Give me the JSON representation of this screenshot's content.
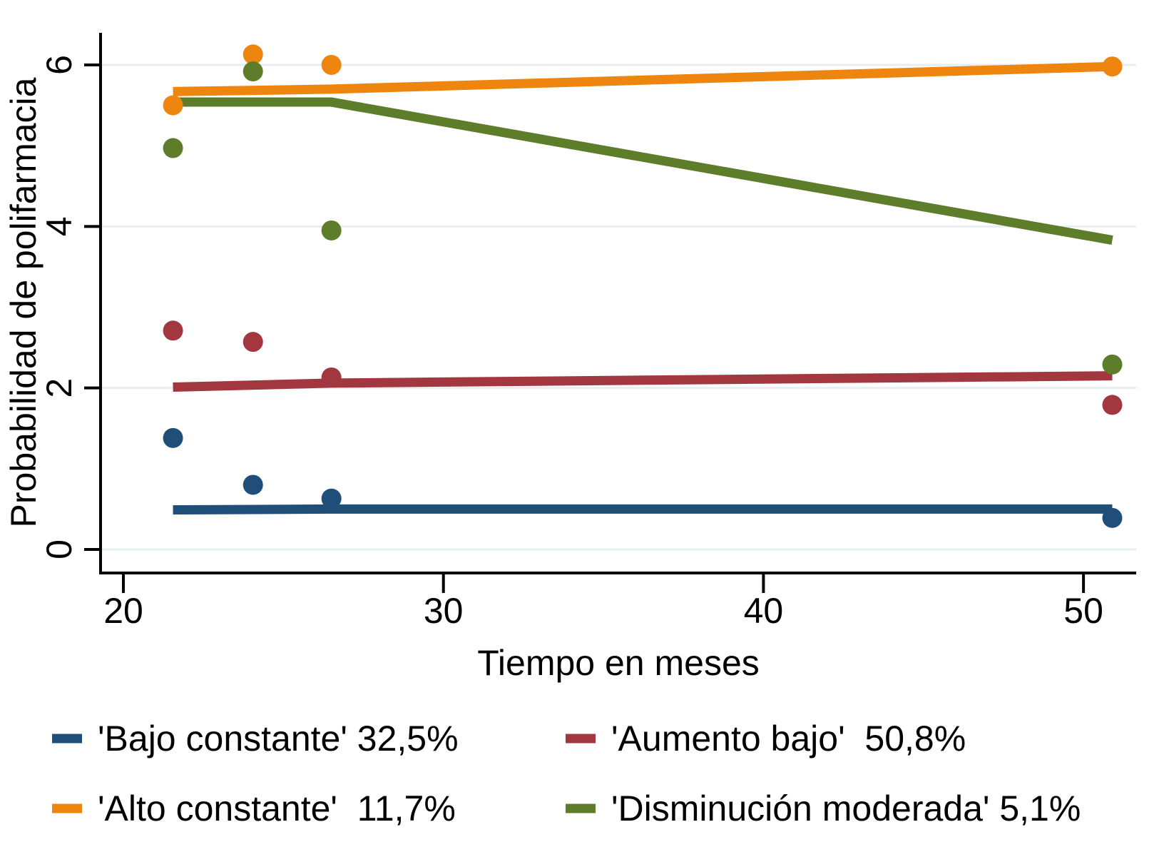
{
  "figure": {
    "background": "#FFFFFF",
    "axis_color": "#000000",
    "grid_color": "#E7EEF2"
  },
  "chart_data": {
    "type": "line",
    "subtype": "trajectory-plot-with-scatter",
    "title": "",
    "xlabel": "Tiempo en meses",
    "ylabel": "Probabilidad de polifarmacia",
    "xlim": [
      19.3,
      51.7
    ],
    "ylim": [
      -0.3,
      6.4
    ],
    "x_ticks": [
      "20",
      "30",
      "40",
      "50"
    ],
    "x_tick_values": [
      20,
      30,
      40,
      50
    ],
    "y_ticks": [
      "0",
      "2",
      "4",
      "6"
    ],
    "y_tick_values": [
      0,
      2,
      4,
      6
    ],
    "grid": "horizontal-only",
    "legend_position": "bottom, 2 columns, 2 rows",
    "series": [
      {
        "name": "Bajo constante",
        "percent": "32,5%",
        "legend_label": "'Bajo constante' 32,5%",
        "color": "#1F4E79",
        "scatter": [
          [
            21.55,
            1.38
          ],
          [
            24.05,
            0.8
          ],
          [
            26.5,
            0.63
          ],
          [
            50.9,
            0.39
          ]
        ],
        "line": [
          [
            21.55,
            0.49
          ],
          [
            26.5,
            0.5
          ],
          [
            50.9,
            0.5
          ]
        ]
      },
      {
        "name": "Aumento bajo",
        "percent": "50,8%",
        "legend_label": "'Aumento bajo'  50,8%",
        "color": "#A23740",
        "scatter": [
          [
            21.55,
            2.71
          ],
          [
            24.05,
            2.57
          ],
          [
            26.5,
            2.13
          ],
          [
            50.9,
            1.79
          ]
        ],
        "line": [
          [
            21.55,
            2.01
          ],
          [
            26.5,
            2.06
          ],
          [
            50.9,
            2.15
          ]
        ]
      },
      {
        "name": "Alto constante",
        "percent": "11,7%",
        "legend_label": "'Alto constante'  11,7%",
        "color": "#EE850E",
        "scatter": [
          [
            21.55,
            5.5
          ],
          [
            24.05,
            6.13
          ],
          [
            26.5,
            6.0
          ],
          [
            50.9,
            5.98
          ]
        ],
        "line": [
          [
            21.55,
            5.67
          ],
          [
            26.5,
            5.7
          ],
          [
            50.9,
            5.98
          ]
        ]
      },
      {
        "name": "Disminución moderada",
        "percent": "5,1%",
        "legend_label": "'Disminución moderada' 5,1%",
        "color": "#5E7D2B",
        "scatter": [
          [
            21.55,
            4.97
          ],
          [
            24.05,
            5.92
          ],
          [
            26.5,
            3.95
          ],
          [
            50.9,
            2.29
          ]
        ],
        "line": [
          [
            21.55,
            5.54
          ],
          [
            26.5,
            5.54
          ],
          [
            50.9,
            3.83
          ]
        ]
      }
    ]
  }
}
